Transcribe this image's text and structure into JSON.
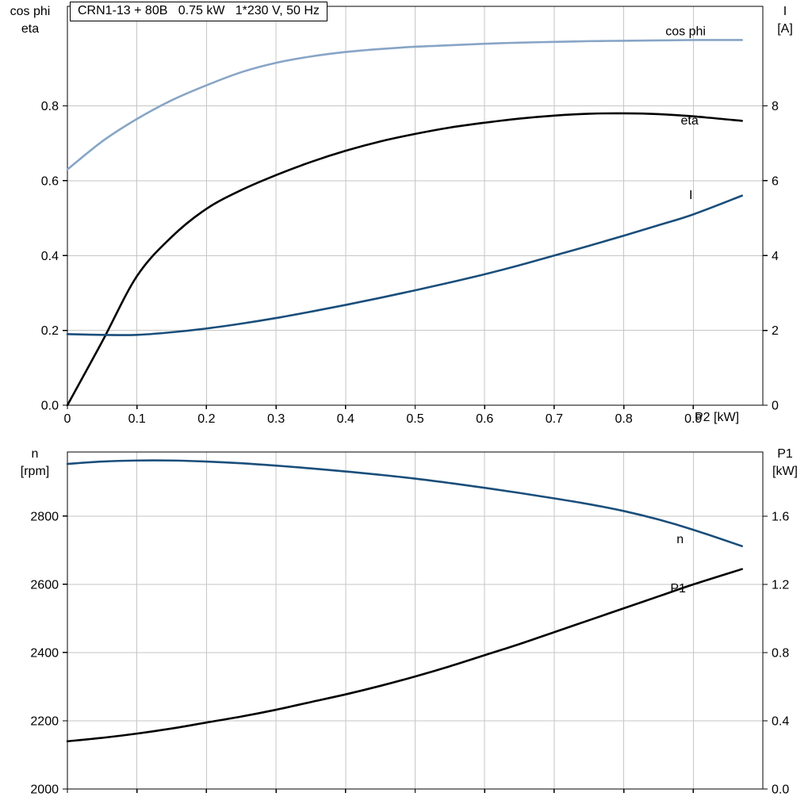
{
  "title_box": {
    "text": "CRN1-13 + 80B   0.75 kW   1*230 V, 50 Hz"
  },
  "x_axis_label": "P2 [kW]",
  "axis_corner_labels": {
    "top_left": [
      "cos phi",
      "eta"
    ],
    "top_right": [
      "I",
      "[A]"
    ],
    "bottom_left": [
      "n",
      "[rpm]"
    ],
    "bottom_right": [
      "P1",
      "[kW]"
    ]
  },
  "colors": {
    "light_blue": "#87A5C6",
    "dark_blue": "#1A4E7B",
    "black": "#000000",
    "grid": "#C6C6C6"
  },
  "chart_data": [
    {
      "type": "line",
      "title": "CRN1-13 + 80B   0.75 kW   1*230 V, 50 Hz",
      "xlabel": "P2 [kW]",
      "grid": true,
      "xlim": [
        0,
        1.0
      ],
      "xticks": {
        "values": [
          0,
          0.1,
          0.2,
          0.3,
          0.4,
          0.5,
          0.6,
          0.7,
          0.8,
          0.9
        ],
        "labels": [
          "0",
          "0.1",
          "0.2",
          "0.3",
          "0.4",
          "0.5",
          "0.6",
          "0.7",
          "0.8",
          "0.9"
        ]
      },
      "left_axis": {
        "label": "cos phi / eta",
        "lim": [
          0,
          1.066
        ],
        "ticks": {
          "values": [
            0,
            0.2,
            0.4,
            0.6,
            0.8
          ],
          "labels": [
            "0.0",
            "0.2",
            "0.4",
            "0.6",
            "0.8"
          ]
        }
      },
      "right_axis": {
        "label": "I [A]",
        "lim": [
          0,
          10.66
        ],
        "ticks": {
          "values": [
            0,
            2,
            4,
            6,
            8
          ],
          "labels": [
            "0",
            "2",
            "4",
            "6",
            "8"
          ]
        }
      },
      "series": [
        {
          "name": "cos phi",
          "axis": "left",
          "color_key": "light_blue",
          "label_pos": [
            0.86,
            0.989
          ],
          "x": [
            0,
            0.05,
            0.1,
            0.15,
            0.2,
            0.25,
            0.3,
            0.35,
            0.4,
            0.45,
            0.5,
            0.55,
            0.6,
            0.65,
            0.7,
            0.75,
            0.8,
            0.85,
            0.9,
            0.97
          ],
          "y": [
            0.63,
            0.705,
            0.765,
            0.815,
            0.855,
            0.89,
            0.915,
            0.932,
            0.944,
            0.952,
            0.958,
            0.962,
            0.966,
            0.969,
            0.971,
            0.973,
            0.974,
            0.975,
            0.976,
            0.976
          ]
        },
        {
          "name": "eta",
          "axis": "left",
          "color_key": "black",
          "label_pos": [
            0.882,
            0.75
          ],
          "x": [
            0,
            0.05,
            0.1,
            0.15,
            0.2,
            0.25,
            0.3,
            0.35,
            0.4,
            0.45,
            0.5,
            0.55,
            0.6,
            0.65,
            0.7,
            0.75,
            0.8,
            0.85,
            0.9,
            0.97
          ],
          "y": [
            0,
            0.17,
            0.345,
            0.45,
            0.525,
            0.575,
            0.615,
            0.65,
            0.68,
            0.705,
            0.725,
            0.742,
            0.755,
            0.766,
            0.774,
            0.779,
            0.78,
            0.778,
            0.772,
            0.76
          ]
        },
        {
          "name": "I",
          "axis": "right",
          "color_key": "dark_blue",
          "label_pos": [
            0.894,
            5.51
          ],
          "x": [
            0,
            0.05,
            0.1,
            0.15,
            0.2,
            0.25,
            0.3,
            0.35,
            0.4,
            0.45,
            0.5,
            0.55,
            0.6,
            0.65,
            0.7,
            0.75,
            0.8,
            0.85,
            0.9,
            0.97
          ],
          "y": [
            1.9,
            1.88,
            1.88,
            1.95,
            2.05,
            2.18,
            2.33,
            2.5,
            2.68,
            2.87,
            3.07,
            3.28,
            3.5,
            3.74,
            4.0,
            4.26,
            4.53,
            4.81,
            5.1,
            5.6
          ]
        }
      ]
    },
    {
      "type": "line",
      "title": "",
      "xlabel": "",
      "grid": true,
      "xlim": [
        0,
        1.0
      ],
      "xticks": {
        "values": [
          0,
          0.1,
          0.2,
          0.3,
          0.4,
          0.5,
          0.6,
          0.7,
          0.8,
          0.9
        ],
        "labels": []
      },
      "left_axis": {
        "label": "n [rpm]",
        "lim": [
          2000,
          2988
        ],
        "ticks": {
          "values": [
            2000,
            2200,
            2400,
            2600,
            2800
          ],
          "labels": [
            "2000",
            "2200",
            "2400",
            "2600",
            "2800"
          ]
        }
      },
      "right_axis": {
        "label": "P1 [kW]",
        "lim": [
          0,
          1.977
        ],
        "ticks": {
          "values": [
            0,
            0.4,
            0.8,
            1.2,
            1.6
          ],
          "labels": [
            "0.0",
            "0.4",
            "0.8",
            "1.2",
            "1.6"
          ]
        }
      },
      "series": [
        {
          "name": "n",
          "axis": "left",
          "color_key": "dark_blue",
          "label_pos": [
            0.876,
            2721
          ],
          "x": [
            0,
            0.05,
            0.1,
            0.15,
            0.2,
            0.25,
            0.3,
            0.35,
            0.4,
            0.45,
            0.5,
            0.55,
            0.6,
            0.65,
            0.7,
            0.75,
            0.8,
            0.85,
            0.9,
            0.97
          ],
          "y": [
            2953,
            2960,
            2963,
            2963,
            2960,
            2955,
            2948,
            2940,
            2931,
            2921,
            2910,
            2897,
            2883,
            2868,
            2852,
            2835,
            2815,
            2790,
            2760,
            2712
          ]
        },
        {
          "name": "P1",
          "axis": "right",
          "color_key": "black",
          "label_pos": [
            0.867,
            1.154
          ],
          "x": [
            0,
            0.05,
            0.1,
            0.15,
            0.2,
            0.25,
            0.3,
            0.35,
            0.4,
            0.45,
            0.5,
            0.55,
            0.6,
            0.65,
            0.7,
            0.75,
            0.8,
            0.85,
            0.9,
            0.97
          ],
          "y": [
            0.28,
            0.3,
            0.325,
            0.355,
            0.39,
            0.425,
            0.465,
            0.51,
            0.555,
            0.605,
            0.66,
            0.72,
            0.785,
            0.85,
            0.92,
            0.99,
            1.06,
            1.13,
            1.2,
            1.29
          ]
        }
      ]
    }
  ]
}
